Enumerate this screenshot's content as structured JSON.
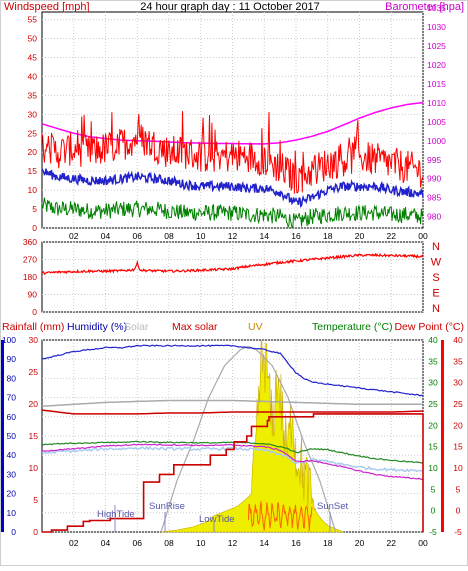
{
  "chart_data": [
    {
      "type": "line",
      "title": "24 hour graph day : 11 October 2017",
      "left_axis_label": "Windspeed [mph]",
      "right_axis_label": "Barometer [hpa]",
      "x_ticks": [
        "02",
        "04",
        "06",
        "08",
        "10",
        "12",
        "14",
        "16",
        "18",
        "20",
        "22",
        "00"
      ],
      "left_ticks": [
        "0",
        "5",
        "10",
        "15",
        "20",
        "25",
        "30",
        "35",
        "40",
        "45",
        "50",
        "55"
      ],
      "right_ticks": [
        "980",
        "985",
        "990",
        "995",
        "1000",
        "1005",
        "1010",
        "1015",
        "1020",
        "1025",
        "1030",
        "1035"
      ],
      "left_ylim": [
        0,
        57
      ],
      "right_ylim": [
        977,
        1034
      ],
      "colors": {
        "gust": "#ff0000",
        "average": "#2222cc",
        "minimum": "#008000",
        "barometer": "#ff00ff"
      },
      "series": [
        {
          "key": "barometer",
          "hours": [
            0,
            1,
            2,
            3,
            4,
            5,
            6,
            7,
            8,
            9,
            10,
            11,
            12,
            13,
            14,
            15,
            16,
            17,
            18,
            19,
            20,
            21,
            22,
            23,
            24
          ],
          "values": [
            1004.5,
            1003.2,
            1002,
            1001.1,
            1000.6,
            1000.2,
            1000,
            999.9,
            999.7,
            999.5,
            999.4,
            999.3,
            999.3,
            999.2,
            999.2,
            999.5,
            1000.2,
            1001.2,
            1002.5,
            1004.2,
            1006,
            1007.5,
            1008.7,
            1009.6,
            1010.1
          ]
        },
        {
          "key": "gust",
          "hours": [
            0,
            1,
            2,
            3,
            4,
            5,
            6,
            7,
            8,
            9,
            10,
            11,
            12,
            13,
            14,
            15,
            16,
            17,
            18,
            19,
            20,
            21,
            22,
            23,
            24
          ],
          "values": [
            22,
            20,
            21,
            20,
            21,
            22,
            24,
            22,
            20,
            20,
            19,
            19,
            19,
            19,
            18,
            16,
            13,
            15,
            17,
            18,
            19,
            18,
            17,
            16,
            15
          ]
        },
        {
          "key": "average",
          "hours": [
            0,
            1,
            2,
            3,
            4,
            5,
            6,
            7,
            8,
            9,
            10,
            11,
            12,
            13,
            14,
            15,
            16,
            17,
            18,
            19,
            20,
            21,
            22,
            23,
            24
          ],
          "values": [
            15,
            13.5,
            13,
            12.5,
            12.5,
            13,
            13.5,
            13,
            12.5,
            11.5,
            11,
            11,
            11,
            10.5,
            10.5,
            9.5,
            6.5,
            8,
            10,
            11,
            11,
            11,
            10,
            9.5,
            9
          ]
        },
        {
          "key": "minimum",
          "hours": [
            0,
            1,
            2,
            3,
            4,
            5,
            6,
            7,
            8,
            9,
            10,
            11,
            12,
            13,
            14,
            15,
            16,
            17,
            18,
            19,
            20,
            21,
            22,
            23,
            24
          ],
          "values": [
            6,
            5,
            5,
            4.5,
            4.5,
            5,
            5,
            5,
            4.5,
            4,
            4,
            4,
            4,
            3.5,
            3.5,
            3,
            1.5,
            3,
            3.5,
            4,
            4,
            4,
            3.5,
            3.5,
            3
          ]
        }
      ]
    },
    {
      "type": "line",
      "title": "",
      "left_ticks": [
        "0",
        "90",
        "180",
        "270",
        "360"
      ],
      "right_ticks": [
        "N",
        "E",
        "S",
        "W",
        "N"
      ],
      "ylim": [
        0,
        360
      ],
      "colors": {
        "direction": "#ff0000"
      },
      "series": [
        {
          "key": "direction",
          "hours": [
            0,
            1,
            2,
            3,
            4,
            5,
            5.8,
            6,
            6.2,
            7,
            8,
            9,
            10,
            11,
            12,
            13,
            14,
            15,
            16,
            17,
            18,
            19,
            20,
            21,
            22,
            23,
            24
          ],
          "values": [
            200,
            205,
            208,
            210,
            210,
            212,
            218,
            250,
            215,
            212,
            210,
            212,
            215,
            218,
            222,
            235,
            245,
            255,
            262,
            270,
            278,
            285,
            292,
            292,
            290,
            288,
            285
          ]
        }
      ]
    },
    {
      "type": "line",
      "title": "",
      "legend": [
        "Rainfall (mm)",
        "Humidity (%)",
        "Solar",
        "Max solar",
        "UV",
        "Temperature (°C)",
        "Dew Point (°C)"
      ],
      "legend_colors": [
        "#cc0000",
        "#0000aa",
        "#aaaaaa",
        "#cc0000",
        "#cc8800",
        "#008000",
        "#cc0000"
      ],
      "rain_ticks": [
        "0",
        "10",
        "20",
        "30",
        "40",
        "50",
        "60",
        "70",
        "80",
        "90",
        "100"
      ],
      "humidity_ticks": [
        "0",
        "5",
        "10",
        "15",
        "20",
        "25",
        "30"
      ],
      "temp_ticks": [
        "-5",
        "0",
        "5",
        "10",
        "15",
        "20",
        "25",
        "30",
        "35",
        "40"
      ],
      "annotations": [
        "HighTide",
        "SunRise",
        "LowTide",
        "SunSet"
      ],
      "colors": {
        "humidity": "#2222cc",
        "temperature": "#228822",
        "dewpoint": "#cc22cc",
        "apparent": "#aaccee",
        "pressure_gray": "#aaaaaa",
        "pressure_red": "#cc0000",
        "rain": "#cc0000",
        "solar": "#eeee00",
        "solar_edge": "#ccaa00",
        "maxsolar": "#aaaaaa"
      },
      "series": [
        {
          "key": "humidity",
          "hours": [
            0,
            1,
            2,
            3,
            4,
            5,
            6,
            7,
            8,
            9,
            10,
            11,
            12,
            13,
            14,
            15,
            15.5,
            16,
            16.5,
            17,
            18,
            19,
            20,
            21,
            22,
            23,
            24
          ],
          "values": [
            90,
            92,
            94,
            95,
            96,
            96,
            97,
            97,
            97,
            97,
            97,
            97,
            97,
            96,
            95,
            93,
            88,
            83,
            80,
            78,
            77,
            76,
            75,
            74,
            73,
            72,
            71
          ]
        },
        {
          "key": "temperature",
          "hours": [
            0,
            1,
            2,
            3,
            4,
            5,
            6,
            7,
            8,
            9,
            10,
            11,
            12,
            13,
            14,
            15,
            15.5,
            16,
            16.5,
            17,
            18,
            19,
            20,
            21,
            22,
            23,
            24
          ],
          "values": [
            15.5,
            15.7,
            15.8,
            15.8,
            16,
            16,
            16.2,
            16.1,
            16,
            16,
            15.9,
            15.9,
            16,
            15.9,
            15.7,
            15,
            14.5,
            13.6,
            14,
            14.5,
            14.3,
            13.5,
            12.8,
            12.2,
            11.8,
            11.5,
            11.2
          ]
        },
        {
          "key": "dewpoint",
          "hours": [
            0,
            1,
            2,
            3,
            4,
            5,
            6,
            7,
            8,
            9,
            10,
            11,
            12,
            13,
            14,
            15,
            15.5,
            16,
            16.5,
            17,
            18,
            19,
            20,
            21,
            22,
            23,
            24
          ],
          "values": [
            14,
            14.2,
            14.5,
            14.8,
            15.2,
            15.3,
            15.5,
            15.5,
            15.4,
            15.4,
            15.3,
            15.3,
            15.4,
            15.2,
            15,
            14.2,
            13,
            11.5,
            11.6,
            11.7,
            11,
            10.2,
            9.3,
            8.5,
            8,
            7.7,
            7.4
          ]
        },
        {
          "key": "apparent",
          "hours": [
            0,
            1,
            2,
            3,
            4,
            5,
            6,
            7,
            8,
            9,
            10,
            11,
            12,
            13,
            14,
            15,
            15.5,
            16,
            16.5,
            17,
            18,
            19,
            20,
            21,
            22,
            23,
            24
          ],
          "values": [
            13.5,
            13.8,
            14,
            14.2,
            14.5,
            14.5,
            14.7,
            14.6,
            14.5,
            14.5,
            14.4,
            14.5,
            14.6,
            14.4,
            14.2,
            13.2,
            12.5,
            11,
            11.5,
            12,
            11.5,
            10.8,
            10.2,
            9.8,
            9.6,
            9.5,
            9.4
          ]
        },
        {
          "key": "pressure_gray",
          "hours": [
            0,
            2,
            4,
            6,
            8,
            10,
            12,
            14,
            16,
            18,
            20,
            22,
            24
          ],
          "values": [
            65.5,
            66.5,
            67.5,
            68,
            68.5,
            68.5,
            68.5,
            68,
            67.5,
            67,
            66.5,
            66.5,
            66.5
          ]
        },
        {
          "key": "pressure_red",
          "hours": [
            0,
            1,
            2,
            4,
            6,
            8,
            10,
            12,
            14,
            16,
            18,
            20,
            22,
            24
          ],
          "values": [
            63.5,
            62.5,
            61.5,
            61.5,
            61.5,
            62,
            62,
            62.5,
            62.5,
            62.5,
            62.5,
            62.5,
            62.5,
            63
          ]
        },
        {
          "key": "rain",
          "hours": [
            0,
            0.6,
            1.6,
            2.6,
            3,
            4.3,
            6.3,
            6.4,
            7.3,
            7.4,
            8.2,
            8.3,
            10.6,
            11.6,
            12.1,
            12.9,
            13.2,
            14.2,
            14.3,
            16.6,
            17.1,
            18,
            24
          ],
          "values": [
            0,
            1,
            3,
            5.5,
            6,
            7,
            7,
            26,
            26,
            30,
            30,
            35,
            40,
            43,
            47,
            50,
            55,
            58,
            60,
            60,
            61.5,
            61.5,
            61.5
          ]
        },
        {
          "key": "solar",
          "hours": [
            7.5,
            8.5,
            9.5,
            10.3,
            10.8,
            11.3,
            11.8,
            12.3,
            12.8,
            13.2,
            13.4,
            13.6,
            13.8,
            14,
            14.2,
            14.5,
            14.8,
            15,
            15.3,
            15.5,
            15.8,
            16,
            16.2,
            16.5,
            16.8,
            17,
            17.3,
            17.6,
            18,
            19
          ],
          "values": [
            0,
            0.3,
            0.8,
            1.5,
            2.5,
            3,
            3.5,
            4,
            5,
            6,
            10,
            18,
            26,
            27,
            25,
            16,
            24,
            22,
            14,
            13,
            20,
            11,
            12,
            9,
            7,
            5,
            3,
            2,
            1,
            0
          ]
        },
        {
          "key": "maxsolar",
          "hours": [
            7.5,
            8.5,
            9.5,
            10.5,
            11.5,
            12.5,
            13,
            13.5,
            14.5,
            15.5,
            16.5,
            17.5,
            18.5
          ],
          "values": [
            0,
            8,
            14,
            21,
            26,
            28.5,
            29,
            28.5,
            26,
            21,
            14,
            8,
            0
          ]
        }
      ]
    }
  ]
}
